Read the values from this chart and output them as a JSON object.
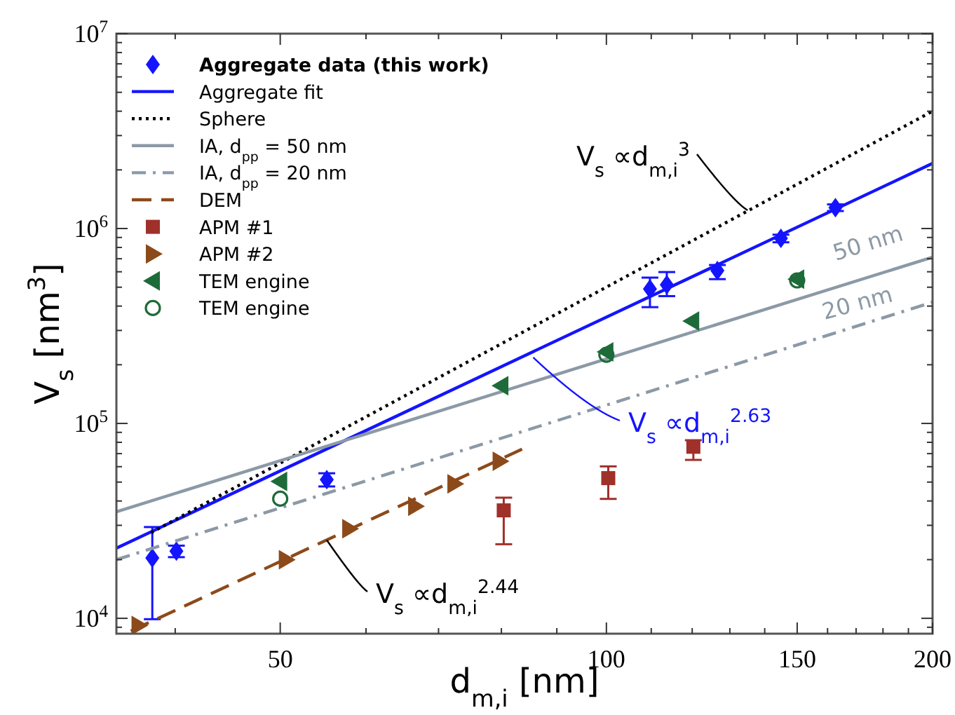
{
  "chart_data": {
    "type": "scatter",
    "xlabel": "d$_{m,i}$ [nm]",
    "ylabel": "V$_{s}$ [nm$^{3}$]",
    "log": "xy",
    "legend": "top left",
    "xlim": [
      35.3,
      200
    ],
    "ylim": [
      8340,
      10000000
    ],
    "xticks": [
      {
        "value": 40,
        "label": null
      },
      50,
      {
        "value": 60,
        "label": null
      },
      {
        "value": 70,
        "label": null
      },
      {
        "value": 80,
        "label": null
      },
      {
        "value": 90,
        "label": null
      },
      100,
      {
        "value": 110,
        "label": null
      },
      {
        "value": 120,
        "label": null
      },
      {
        "value": 130,
        "label": null
      },
      {
        "value": 140,
        "label": null
      },
      150,
      {
        "value": 160,
        "label": null
      },
      {
        "value": 170,
        "label": null
      },
      {
        "value": 180,
        "label": null
      },
      {
        "value": 190,
        "label": null
      },
      200
    ],
    "yticks": [
      {
        "value": 9000,
        "label": null
      },
      {
        "value": 10000,
        "label": "10$^{4}$"
      },
      {
        "value": 20000,
        "label": null
      },
      {
        "value": 30000,
        "label": null
      },
      {
        "value": 40000,
        "label": null
      },
      {
        "value": 50000,
        "label": null
      },
      {
        "value": 60000,
        "label": null
      },
      {
        "value": 70000,
        "label": null
      },
      {
        "value": 80000,
        "label": null
      },
      {
        "value": 90000,
        "label": null
      },
      {
        "value": 100000,
        "label": "10$^{5}$"
      },
      {
        "value": 200000,
        "label": null
      },
      {
        "value": 300000,
        "label": null
      },
      {
        "value": 400000,
        "label": null
      },
      {
        "value": 500000,
        "label": null
      },
      {
        "value": 600000,
        "label": null
      },
      {
        "value": 700000,
        "label": null
      },
      {
        "value": 800000,
        "label": null
      },
      {
        "value": 900000,
        "label": null
      },
      {
        "value": 1000000,
        "label": "10$^{6}$"
      },
      {
        "value": 2000000,
        "label": null
      },
      {
        "value": 3000000,
        "label": null
      },
      {
        "value": 4000000,
        "label": null
      },
      {
        "value": 5000000,
        "label": null
      },
      {
        "value": 6000000,
        "label": null
      },
      {
        "value": 7000000,
        "label": null
      },
      {
        "value": 8000000,
        "label": null
      },
      {
        "value": 9000000,
        "label": null
      },
      {
        "value": 10000000,
        "label": "10$^{7}$"
      }
    ],
    "series": [
      {
        "name": "Aggregate data (this work)",
        "marker": "diamond",
        "color": "#1414ff",
        "x": [
          38.1,
          40.1,
          55.2,
          109.7,
          113.7,
          126.6,
          144.9,
          162.7
        ],
        "values": [
          20400,
          22100,
          51500,
          490000,
          515000,
          608000,
          890000,
          1280000
        ],
        "errors": [
          [
            9900,
            29400
          ],
          [
            20600,
            23600
          ],
          [
            47500,
            55500
          ],
          [
            395000,
            560000
          ],
          [
            450000,
            598000
          ],
          [
            550000,
            650000
          ],
          [
            850000,
            930000
          ],
          [
            1230000,
            1330000
          ]
        ]
      },
      {
        "name": "Aggregate fit",
        "type": "line",
        "line_style": "solid",
        "color": "#1414ff",
        "x": [
          35.3,
          200
        ],
        "values": [
          22900,
          2160000
        ]
      },
      {
        "name": "Sphere",
        "type": "line",
        "line_style": "dotted",
        "color": "#000000",
        "x": [
          38,
          200
        ],
        "values": [
          27500,
          4000000
        ]
      },
      {
        "name": "IA, d$_{pp}$ = 50 nm",
        "type": "line",
        "line_style": "solid",
        "color": "#8c99a6",
        "x": [
          35.3,
          200
        ],
        "values": [
          35200,
          713000
        ]
      },
      {
        "name": "IA, d$_{pp}$ = 20 nm",
        "type": "line",
        "line_style": "dashdot",
        "color": "#8c99a6",
        "x": [
          35.3,
          200
        ],
        "values": [
          20000,
          419000
        ]
      },
      {
        "name": "DEM",
        "type": "line",
        "line_style": "dashed",
        "color": "#8c4a1a",
        "x": [
          36.4,
          83.6
        ],
        "values": [
          8610,
          73800
        ]
      },
      {
        "name": "APM #1",
        "marker": "square",
        "color": "#a0302a",
        "x": [
          80.4,
          100.4,
          120.3
        ],
        "values": [
          35800,
          52400,
          75900
        ],
        "errors": [
          [
            24000,
            41600
          ],
          [
            41000,
            60200
          ],
          [
            65000,
            82000
          ]
        ]
      },
      {
        "name": "APM #2",
        "marker": "triangle-right",
        "color": "#8c4a1a",
        "x": [
          37,
          50.6,
          57.9,
          66.6,
          72.4,
          79.7
        ],
        "values": [
          9200,
          20000,
          28800,
          37600,
          49000,
          64000
        ]
      },
      {
        "name": "TEM engine",
        "marker": "triangle-left",
        "color": "#1e6b3a",
        "x": [
          50,
          80,
          100,
          120,
          150
        ],
        "values": [
          50400,
          156000,
          233000,
          335000,
          550000
        ]
      },
      {
        "name": "TEM engine",
        "marker": "circle-open",
        "color": "#1e6b3a",
        "x": [
          50,
          100,
          150
        ],
        "values": [
          41100,
          225000,
          542000
        ]
      }
    ],
    "annotations": [
      {
        "text": "V$_{s}$ ∝d$_{m,i}$$^{3}$",
        "x": 135,
        "y": 1240000
      },
      {
        "text": "V$_{s}$ ∝d$_{m,i}$$^{2.63}$",
        "x": 85.6,
        "y": 218000
      },
      {
        "text": "V$_{s}$ ∝d$_{m,i}$$^{2.44}$",
        "x": 55.2,
        "y": 25200
      },
      "50 nm",
      "20 nm"
    ]
  }
}
